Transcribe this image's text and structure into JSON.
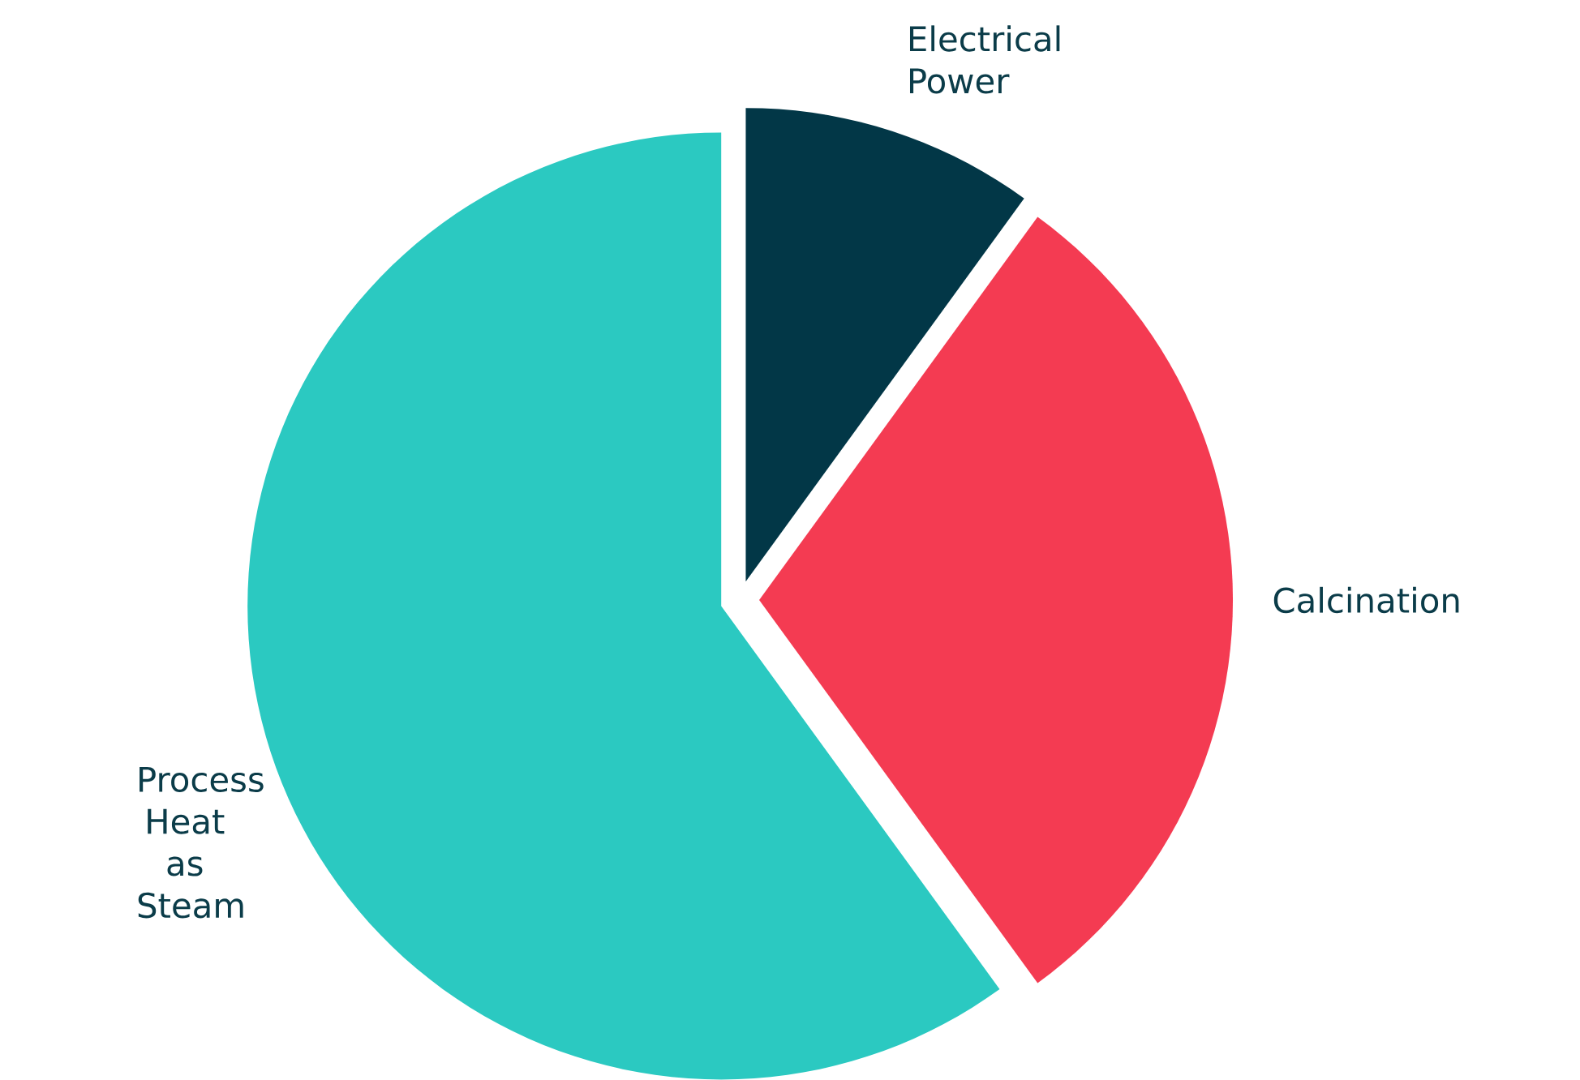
{
  "chart_data": {
    "type": "pie",
    "categories": [
      "Electrical Power",
      "Calcination",
      "Process Heat as Steam"
    ],
    "values": [
      10,
      30,
      60
    ],
    "colors": [
      "#023747",
      "#f43b52",
      "#2bc9c1"
    ]
  }
}
